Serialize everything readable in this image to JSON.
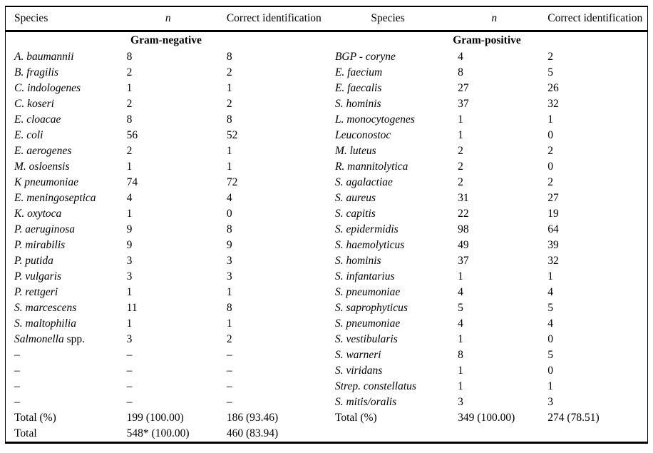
{
  "page": {
    "background": "#ffffff",
    "text_color": "#000000"
  },
  "header": {
    "species": "Species",
    "n": "n",
    "correct": "Correct identification"
  },
  "groups": {
    "negative": "Gram-negative",
    "positive": "Gram-positive"
  },
  "rows": [
    {
      "l": {
        "name": "A. baumannii",
        "italic": true,
        "n": "8",
        "c": "8"
      },
      "r": {
        "name": "BGP - coryne",
        "italic": true,
        "n": "4",
        "c": "2"
      }
    },
    {
      "l": {
        "name": "B. fragilis",
        "italic": true,
        "n": "2",
        "c": "2"
      },
      "r": {
        "name": "E. faecium",
        "italic": true,
        "n": "8",
        "c": "5"
      }
    },
    {
      "l": {
        "name": "C. indologenes",
        "italic": true,
        "n": "1",
        "c": "1"
      },
      "r": {
        "name": "E. faecalis",
        "italic": true,
        "n": "27",
        "c": "26"
      }
    },
    {
      "l": {
        "name": "C. koseri",
        "italic": true,
        "n": "2",
        "c": "2"
      },
      "r": {
        "name": "S. hominis",
        "italic": true,
        "n": "37",
        "c": "32"
      }
    },
    {
      "l": {
        "name": "E. cloacae",
        "italic": true,
        "n": "8",
        "c": "8"
      },
      "r": {
        "name": "L. monocytogenes",
        "italic": true,
        "n": "1",
        "c": "1"
      }
    },
    {
      "l": {
        "name": "E. coli",
        "italic": true,
        "n": "56",
        "c": "52"
      },
      "r": {
        "name": "Leuconostoc",
        "italic": true,
        "n": "1",
        "c": "0"
      }
    },
    {
      "l": {
        "name": "E. aerogenes",
        "italic": true,
        "n": "2",
        "c": "1"
      },
      "r": {
        "name": "M. luteus",
        "italic": true,
        "n": "2",
        "c": "2"
      }
    },
    {
      "l": {
        "name": "M. osloensis",
        "italic": true,
        "n": "1",
        "c": "1"
      },
      "r": {
        "name": "R. mannitolytica",
        "italic": true,
        "n": "2",
        "c": "0"
      }
    },
    {
      "l": {
        "name": "K pneumoniae",
        "italic": true,
        "n": "74",
        "c": "72"
      },
      "r": {
        "name": "S. agalactiae",
        "italic": true,
        "n": "2",
        "c": "2"
      }
    },
    {
      "l": {
        "name": "E. meningoseptica",
        "italic": true,
        "n": "4",
        "c": "4"
      },
      "r": {
        "name": "S. aureus",
        "italic": true,
        "n": "31",
        "c": "27"
      }
    },
    {
      "l": {
        "name": "K. oxytoca",
        "italic": true,
        "n": "1",
        "c": "0"
      },
      "r": {
        "name": "S. capitis",
        "italic": true,
        "n": "22",
        "c": "19"
      }
    },
    {
      "l": {
        "name": "P. aeruginosa",
        "italic": true,
        "n": "9",
        "c": "8"
      },
      "r": {
        "name": "S. epidermidis",
        "italic": true,
        "n": "98",
        "c": "64"
      }
    },
    {
      "l": {
        "name": "P. mirabilis",
        "italic": true,
        "n": "9",
        "c": "9"
      },
      "r": {
        "name": "S. haemolyticus",
        "italic": true,
        "n": "49",
        "c": "39"
      }
    },
    {
      "l": {
        "name": "P. putida",
        "italic": true,
        "n": "3",
        "c": "3"
      },
      "r": {
        "name": "S. hominis",
        "italic": true,
        "n": "37",
        "c": "32"
      }
    },
    {
      "l": {
        "name": "P. vulgaris",
        "italic": true,
        "n": "3",
        "c": "3"
      },
      "r": {
        "name": "S. infantarius",
        "italic": true,
        "n": "1",
        "c": "1"
      }
    },
    {
      "l": {
        "name": "P. rettgeri",
        "italic": true,
        "n": "1",
        "c": "1"
      },
      "r": {
        "name": "S. pneumoniae",
        "italic": true,
        "n": "4",
        "c": "4"
      }
    },
    {
      "l": {
        "name": "S. marcescens",
        "italic": true,
        "n": "11",
        "c": "8"
      },
      "r": {
        "name": "S. saprophyticus",
        "italic": true,
        "n": "5",
        "c": "5"
      }
    },
    {
      "l": {
        "name": "S. maltophilia",
        "italic": true,
        "n": "1",
        "c": "1"
      },
      "r": {
        "name": "S. pneumoniae",
        "italic": true,
        "n": "4",
        "c": "4"
      }
    },
    {
      "l": {
        "name": "Salmonella",
        "suffix": " spp.",
        "italic": true,
        "n": "3",
        "c": "2"
      },
      "r": {
        "name": "S. vestibularis",
        "italic": true,
        "n": "1",
        "c": "0"
      }
    },
    {
      "l": {
        "name": "–",
        "italic": false,
        "n": "–",
        "c": "–"
      },
      "r": {
        "name": "S. warneri",
        "italic": true,
        "n": "8",
        "c": "5"
      }
    },
    {
      "l": {
        "name": "–",
        "italic": false,
        "n": "–",
        "c": "–"
      },
      "r": {
        "name": "S. viridans",
        "italic": true,
        "n": "1",
        "c": "0"
      }
    },
    {
      "l": {
        "name": "–",
        "italic": false,
        "n": "–",
        "c": "–"
      },
      "r": {
        "name": "Strep. constellatus",
        "italic": true,
        "n": "1",
        "c": "1"
      }
    },
    {
      "l": {
        "name": "–",
        "italic": false,
        "n": "–",
        "c": "–"
      },
      "r": {
        "name": "S. mitis/oralis",
        "italic": true,
        "n": "3",
        "c": "3"
      }
    },
    {
      "l": {
        "name": "Total (%)",
        "italic": false,
        "n": "199 (100.00)",
        "c": "186 (93.46)"
      },
      "r": {
        "name": "Total (%)",
        "italic": false,
        "n": "349 (100.00)",
        "c": "274 (78.51)"
      }
    },
    {
      "l": {
        "name": "Total",
        "italic": false,
        "n": "548* (100.00)",
        "c": "460 (83.94)"
      },
      "r": {
        "name": "",
        "italic": false,
        "n": "",
        "c": ""
      }
    }
  ]
}
